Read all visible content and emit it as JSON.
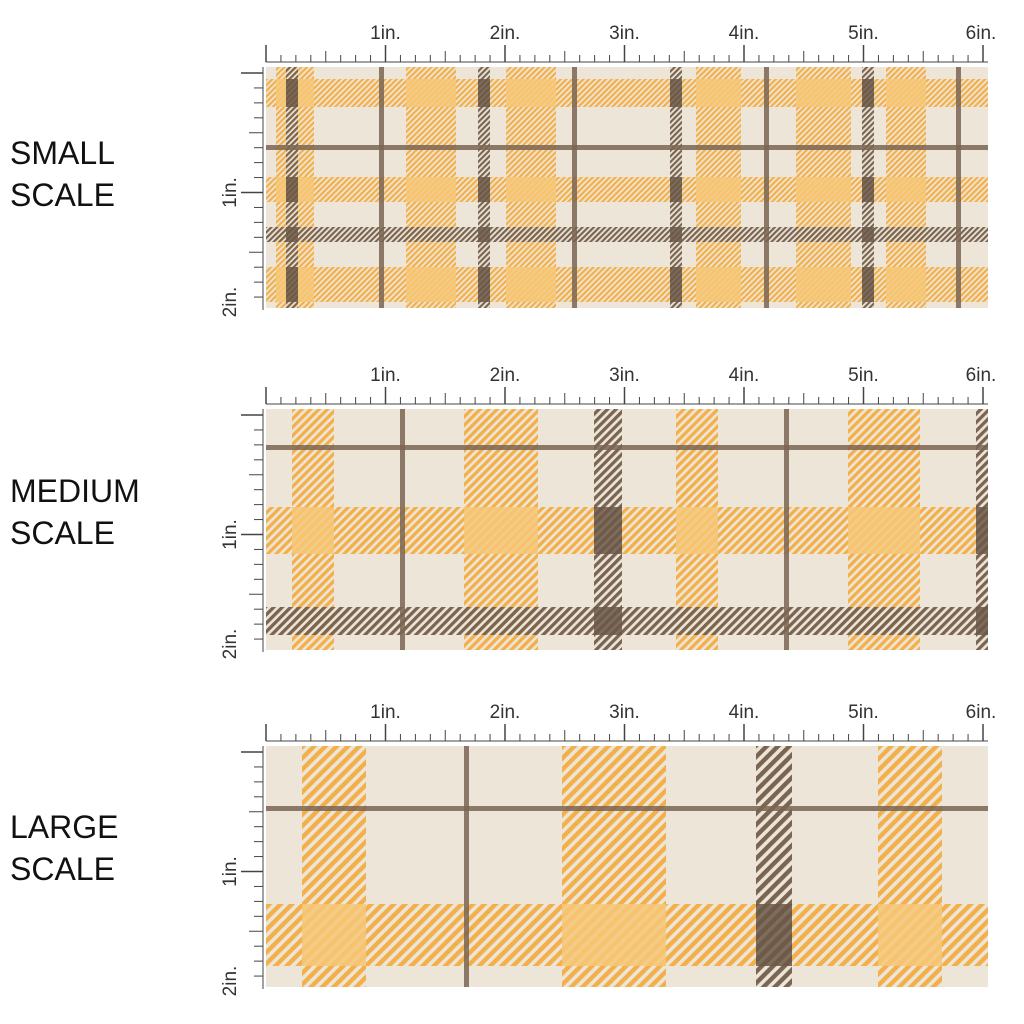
{
  "inch_labels": [
    "1in.",
    "2in.",
    "3in.",
    "4in.",
    "5in.",
    "6in."
  ],
  "vertical_labels": [
    "1in.",
    "2in."
  ],
  "colors": {
    "background": "#ece5d8",
    "orange": "#f3b04a",
    "orange_light": "#f6c878",
    "brown": "#7a6552",
    "brown_dark": "#6b5848",
    "ruler": "#444444"
  },
  "sections": [
    {
      "id": "small",
      "label_line1": "SMALL",
      "label_line2": "SCALE"
    },
    {
      "id": "medium",
      "label_line1": "MEDIUM",
      "label_line2": "SCALE"
    },
    {
      "id": "large",
      "label_line1": "LARGE",
      "label_line2": "SCALE"
    }
  ]
}
